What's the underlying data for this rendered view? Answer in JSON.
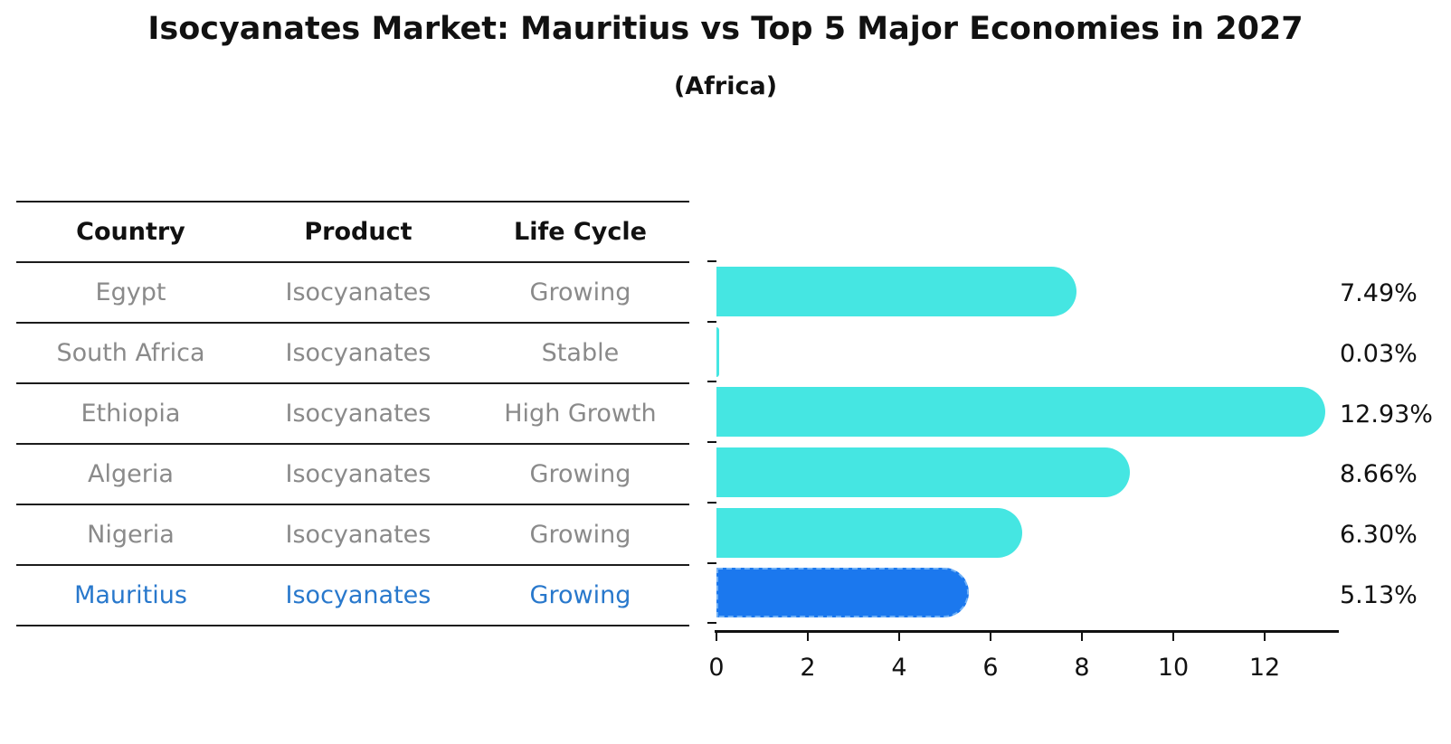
{
  "chart": {
    "title": "Isocyanates Market: Mauritius vs Top 5 Major Economies in 2027",
    "subtitle": "(Africa)"
  },
  "table": {
    "columns": [
      "Country",
      "Product",
      "Life Cycle"
    ],
    "rows": [
      {
        "country": "Egypt",
        "product": "Isocyanates",
        "life_cycle": "Growing",
        "highlight": false
      },
      {
        "country": "South Africa",
        "product": "Isocyanates",
        "life_cycle": "Stable",
        "highlight": false
      },
      {
        "country": "Ethiopia",
        "product": "Isocyanates",
        "life_cycle": "High Growth",
        "highlight": false
      },
      {
        "country": "Algeria",
        "product": "Isocyanates",
        "life_cycle": "Growing",
        "highlight": false
      },
      {
        "country": "Nigeria",
        "product": "Isocyanates",
        "life_cycle": "Growing",
        "highlight": true
      }
    ]
  },
  "chart_data": {
    "type": "bar",
    "orientation": "horizontal",
    "title": "Isocyanates Market: Mauritius vs Top 5 Major Economies in 2027",
    "subtitle": "(Africa)",
    "categories": [
      "Egypt",
      "South Africa",
      "Ethiopia",
      "Algeria",
      "Nigeria",
      "Mauritius"
    ],
    "values": [
      7.49,
      0.03,
      12.93,
      8.66,
      6.3,
      5.13
    ],
    "value_labels": [
      "7.49%",
      "0.03%",
      "12.93%",
      "8.66%",
      "6.30%",
      "5.13%"
    ],
    "highlight_index": 5,
    "xlabel": "",
    "ylabel": "",
    "x_ticks": [
      0,
      2,
      4,
      6,
      8,
      10,
      12
    ],
    "xlim": [
      0,
      13.6
    ],
    "grid": false,
    "legend": "none",
    "value_label_position": "right"
  },
  "colors": {
    "bar": "#45e6e2",
    "highlight_bar": "#1b78ee",
    "highlight_bar_border": "#6fb0f6",
    "highlight_text": "#2878cc",
    "table_text": "#8a8a8a",
    "line": "#1c1c1c",
    "text": "#111111"
  }
}
